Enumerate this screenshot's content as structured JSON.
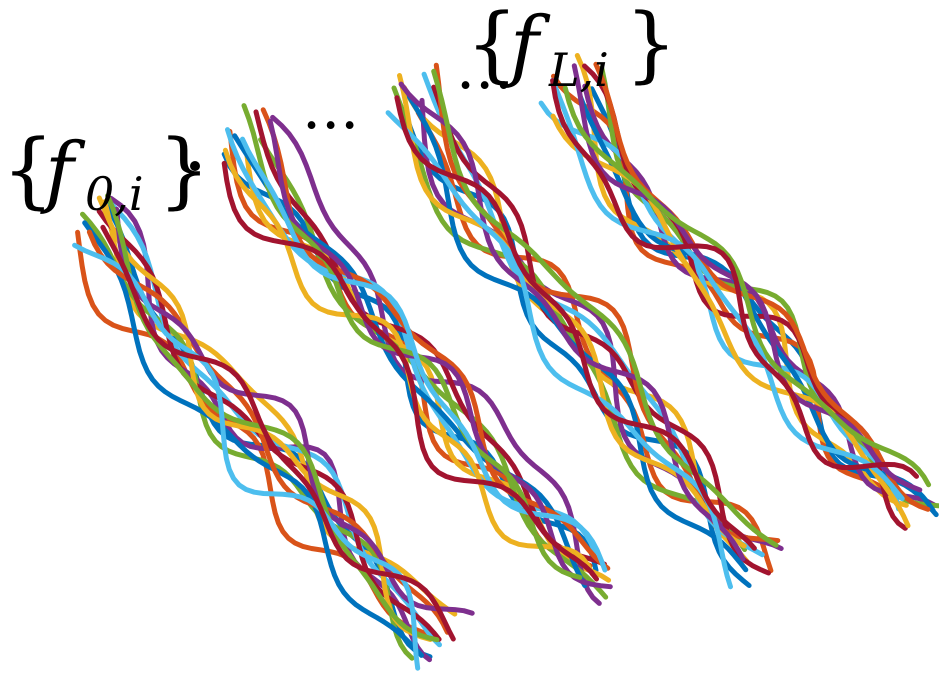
{
  "labels": {
    "first": {
      "base": "f",
      "sub": "0,i"
    },
    "last": {
      "base": "f",
      "sub": "L,i"
    },
    "ellipsis": "..."
  },
  "colors": [
    "#0072BD",
    "#D95319",
    "#EDB120",
    "#7E2F8E",
    "#77AC30",
    "#4DBEEE",
    "#A2142F"
  ],
  "groups": [
    "group-0",
    "group-1",
    "group-2",
    "group-L"
  ]
}
